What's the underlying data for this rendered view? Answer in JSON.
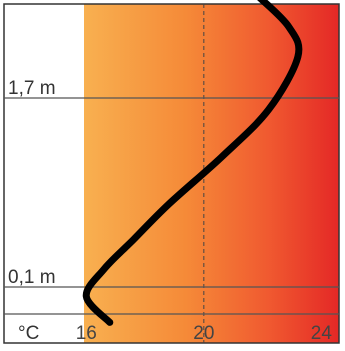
{
  "chart_data": {
    "type": "line",
    "title": "",
    "xlabel": "°C",
    "ylabel": "",
    "x_ticks": [
      16,
      20,
      24
    ],
    "x_range": [
      13.2,
      24.6
    ],
    "height_marks": [
      {
        "label": "1,7 m",
        "height": 1.7
      },
      {
        "label": "0,1 m",
        "height": 0.1
      }
    ],
    "grid": {
      "vertical_dashed_at": 20
    },
    "series": [
      {
        "name": "",
        "color": "#000000",
        "points": [
          {
            "x": 21.9,
            "y": 2.55
          },
          {
            "x": 22.9,
            "y": 2.3
          },
          {
            "x": 23.2,
            "y": 2.05
          },
          {
            "x": 22.2,
            "y": 1.6
          },
          {
            "x": 20.6,
            "y": 1.2
          },
          {
            "x": 18.8,
            "y": 0.8
          },
          {
            "x": 17.6,
            "y": 0.5
          },
          {
            "x": 16.6,
            "y": 0.25
          },
          {
            "x": 16.0,
            "y": 0.02
          },
          {
            "x": 16.8,
            "y": -0.2
          }
        ]
      }
    ],
    "background_gradient": [
      "#f8b050",
      "#f58a38",
      "#f05a30",
      "#e42826"
    ]
  }
}
